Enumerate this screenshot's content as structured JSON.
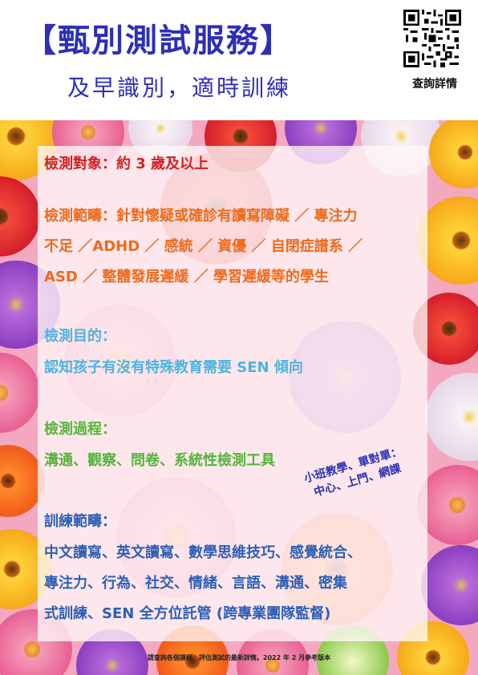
{
  "header": {
    "title": "【甄別測試服務】",
    "subtitle": "及早識別，適時訓練",
    "qr_label": "查詢詳情"
  },
  "colors": {
    "title": "#2c2fb8",
    "target": "#d42020",
    "scope": "#ef6a1a",
    "purpose": "#4cb4e0",
    "process": "#55b33c",
    "training": "#2d5fb8"
  },
  "content": {
    "target": "檢測對象：約 3 歲及以上",
    "scope_lines": [
      "檢測範疇：針對懷疑或確診有讀寫障礙 ／ 專注力",
      "不足 ／ADHD ／ 感統 ／ 資優 ／ 自閉症譜系 ／",
      "ASD ／ 整體發展遲緩 ／ 學習遲緩等的學生"
    ],
    "purpose_heading": "檢測目的：",
    "purpose_text": "認知孩子有沒有特殊教育需要 SEN 傾向",
    "process_heading": "檢測過程：",
    "process_text": "溝通、觀察、問卷、系統性檢測工具",
    "training_heading": "訓練範疇：",
    "training_lines": [
      "中文讀寫、英文讀寫、數學思維技巧、感覺統合、",
      "專注力、行為、社交、情緒、言語、溝通、密集",
      "式訓練、SEN  全方位託管  (跨專業團隊監督)"
    ]
  },
  "stamp": {
    "line1": "小班教學、單對單：",
    "line2": "中心、上門、網課"
  },
  "footer": "請查詢各個課程、評估測試的最新詳情。2022 年 2 月參考版本"
}
